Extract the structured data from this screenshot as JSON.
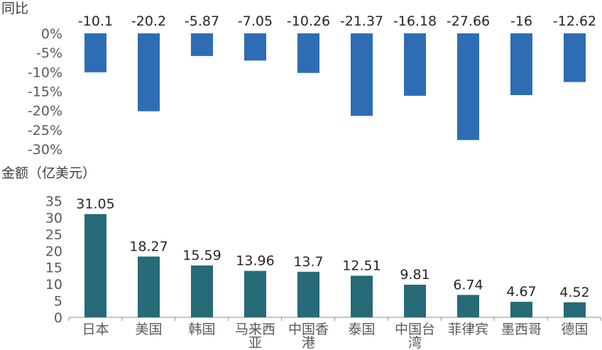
{
  "chart_data": [
    {
      "type": "bar",
      "ylabel": "同比",
      "categories": [
        "日本",
        "美国",
        "韩国",
        "马来西亚",
        "中国香港",
        "泰国",
        "中国台湾",
        "菲律宾",
        "墨西哥",
        "德国"
      ],
      "values": [
        -10.1,
        -20.2,
        -5.87,
        -7.05,
        -10.26,
        -21.37,
        -16.18,
        -27.66,
        -16,
        -12.62
      ],
      "value_labels": [
        "-10.1",
        "-20.2",
        "-5.87",
        "-7.05",
        "-10.26",
        "-21.37",
        "-16.18",
        "-27.66",
        "-16",
        "-12.62"
      ],
      "ylim": [
        -30,
        0
      ],
      "yticks": [
        0,
        -5,
        -10,
        -15,
        -20,
        -25,
        -30
      ],
      "ytick_labels": [
        "0%",
        "-5%",
        "-10%",
        "-15%",
        "-20%",
        "-25%",
        "-30%"
      ],
      "color": "#2e6db4",
      "grid": false
    },
    {
      "type": "bar",
      "ylabel": "金额（亿美元）",
      "categories": [
        "日本",
        "美国",
        "韩国",
        "马来西亚",
        "中国香港",
        "泰国",
        "中国台湾",
        "菲律宾",
        "墨西哥",
        "德国"
      ],
      "category_labels": [
        [
          "日本"
        ],
        [
          "美国"
        ],
        [
          "韩国"
        ],
        [
          "马来西",
          "亚"
        ],
        [
          "中国香",
          "港"
        ],
        [
          "泰国"
        ],
        [
          "中国台",
          "湾"
        ],
        [
          "菲律宾"
        ],
        [
          "墨西哥"
        ],
        [
          "德国"
        ]
      ],
      "values": [
        31.05,
        18.27,
        15.59,
        13.96,
        13.7,
        12.51,
        9.81,
        6.74,
        4.67,
        4.52
      ],
      "value_labels": [
        "31.05",
        "18.27",
        "15.59",
        "13.96",
        "13.7",
        "12.51",
        "9.81",
        "6.74",
        "4.67",
        "4.52"
      ],
      "ylim": [
        0,
        35
      ],
      "yticks": [
        0,
        5,
        10,
        15,
        20,
        25,
        30,
        35
      ],
      "ytick_labels": [
        "0",
        "5",
        "10",
        "15",
        "20",
        "25",
        "30",
        "35"
      ],
      "color": "#276a78",
      "grid": false
    }
  ]
}
